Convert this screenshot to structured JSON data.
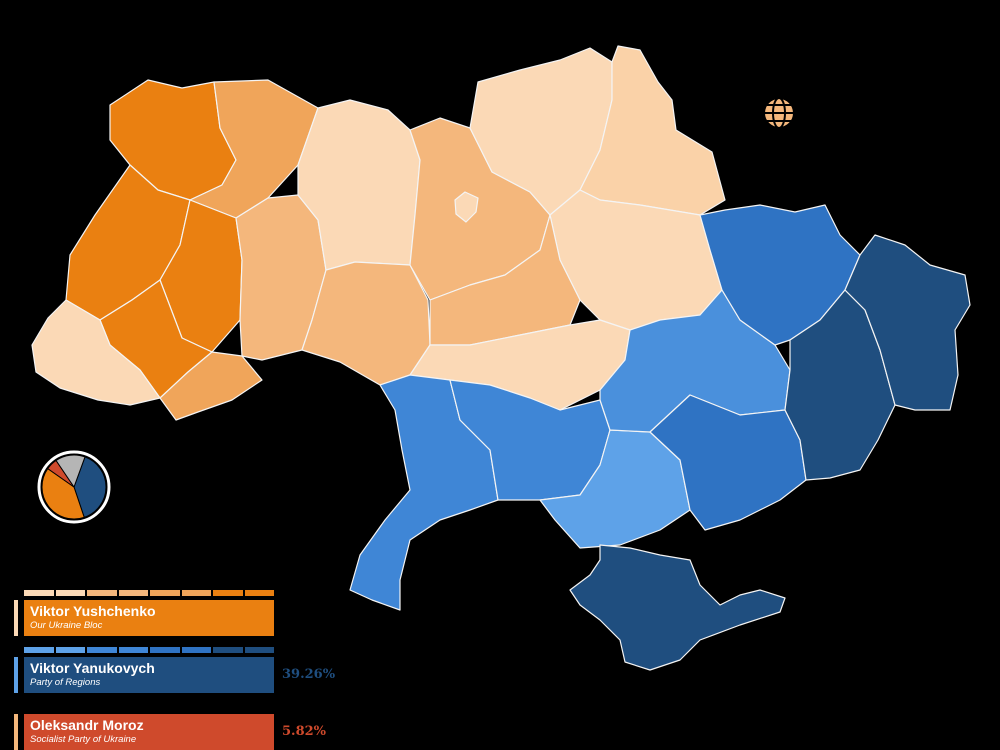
{
  "colors": {
    "background": "#000000",
    "yushchenko_strong": "#ea8011",
    "yushchenko_mid": "#f0a55a",
    "yushchenko_light": "#f4b77c",
    "yushchenko_pale": "#fbd9b6",
    "yanukovych_light": "#5ea2e8",
    "yanukovych_mid": "#3f86d6",
    "yanukovych_strong": "#2f73c3",
    "yanukovych_dark": "#1f4e7f",
    "moroz": "#cf4a2c",
    "other": "#b5b5b5"
  },
  "globe_icon": "globe-icon",
  "pie": {
    "shares": [
      {
        "name": "Viktor Yanukovych",
        "value": 39.26,
        "color": "#1f4e7f"
      },
      {
        "name": "Viktor Yushchenko",
        "value": 39.9,
        "color": "#ea8011"
      },
      {
        "name": "Oleksandr Moroz",
        "value": 5.82,
        "color": "#cf4a2c"
      },
      {
        "name": "Other",
        "value": 15.02,
        "color": "#b5b5b5"
      }
    ]
  },
  "candidates": [
    {
      "name": "Viktor Yushchenko",
      "party": "Our Ukraine Bloc",
      "percent": "",
      "color": "#ea8011",
      "strip": [
        "#fbd9b6",
        "#f4b77c",
        "#f0a55a",
        "#ea8011"
      ]
    },
    {
      "name": "Viktor Yanukovych",
      "party": "Party of Regions",
      "percent": "39.26%",
      "color": "#1f4e7f",
      "strip": [
        "#5ea2e8",
        "#3f86d6",
        "#2f73c3",
        "#1f4e7f"
      ]
    },
    {
      "name": "Oleksandr Moroz",
      "party": "Socialist Party of Ukraine",
      "percent": "5.82%",
      "color": "#cf4a2c",
      "strip": []
    }
  ]
}
